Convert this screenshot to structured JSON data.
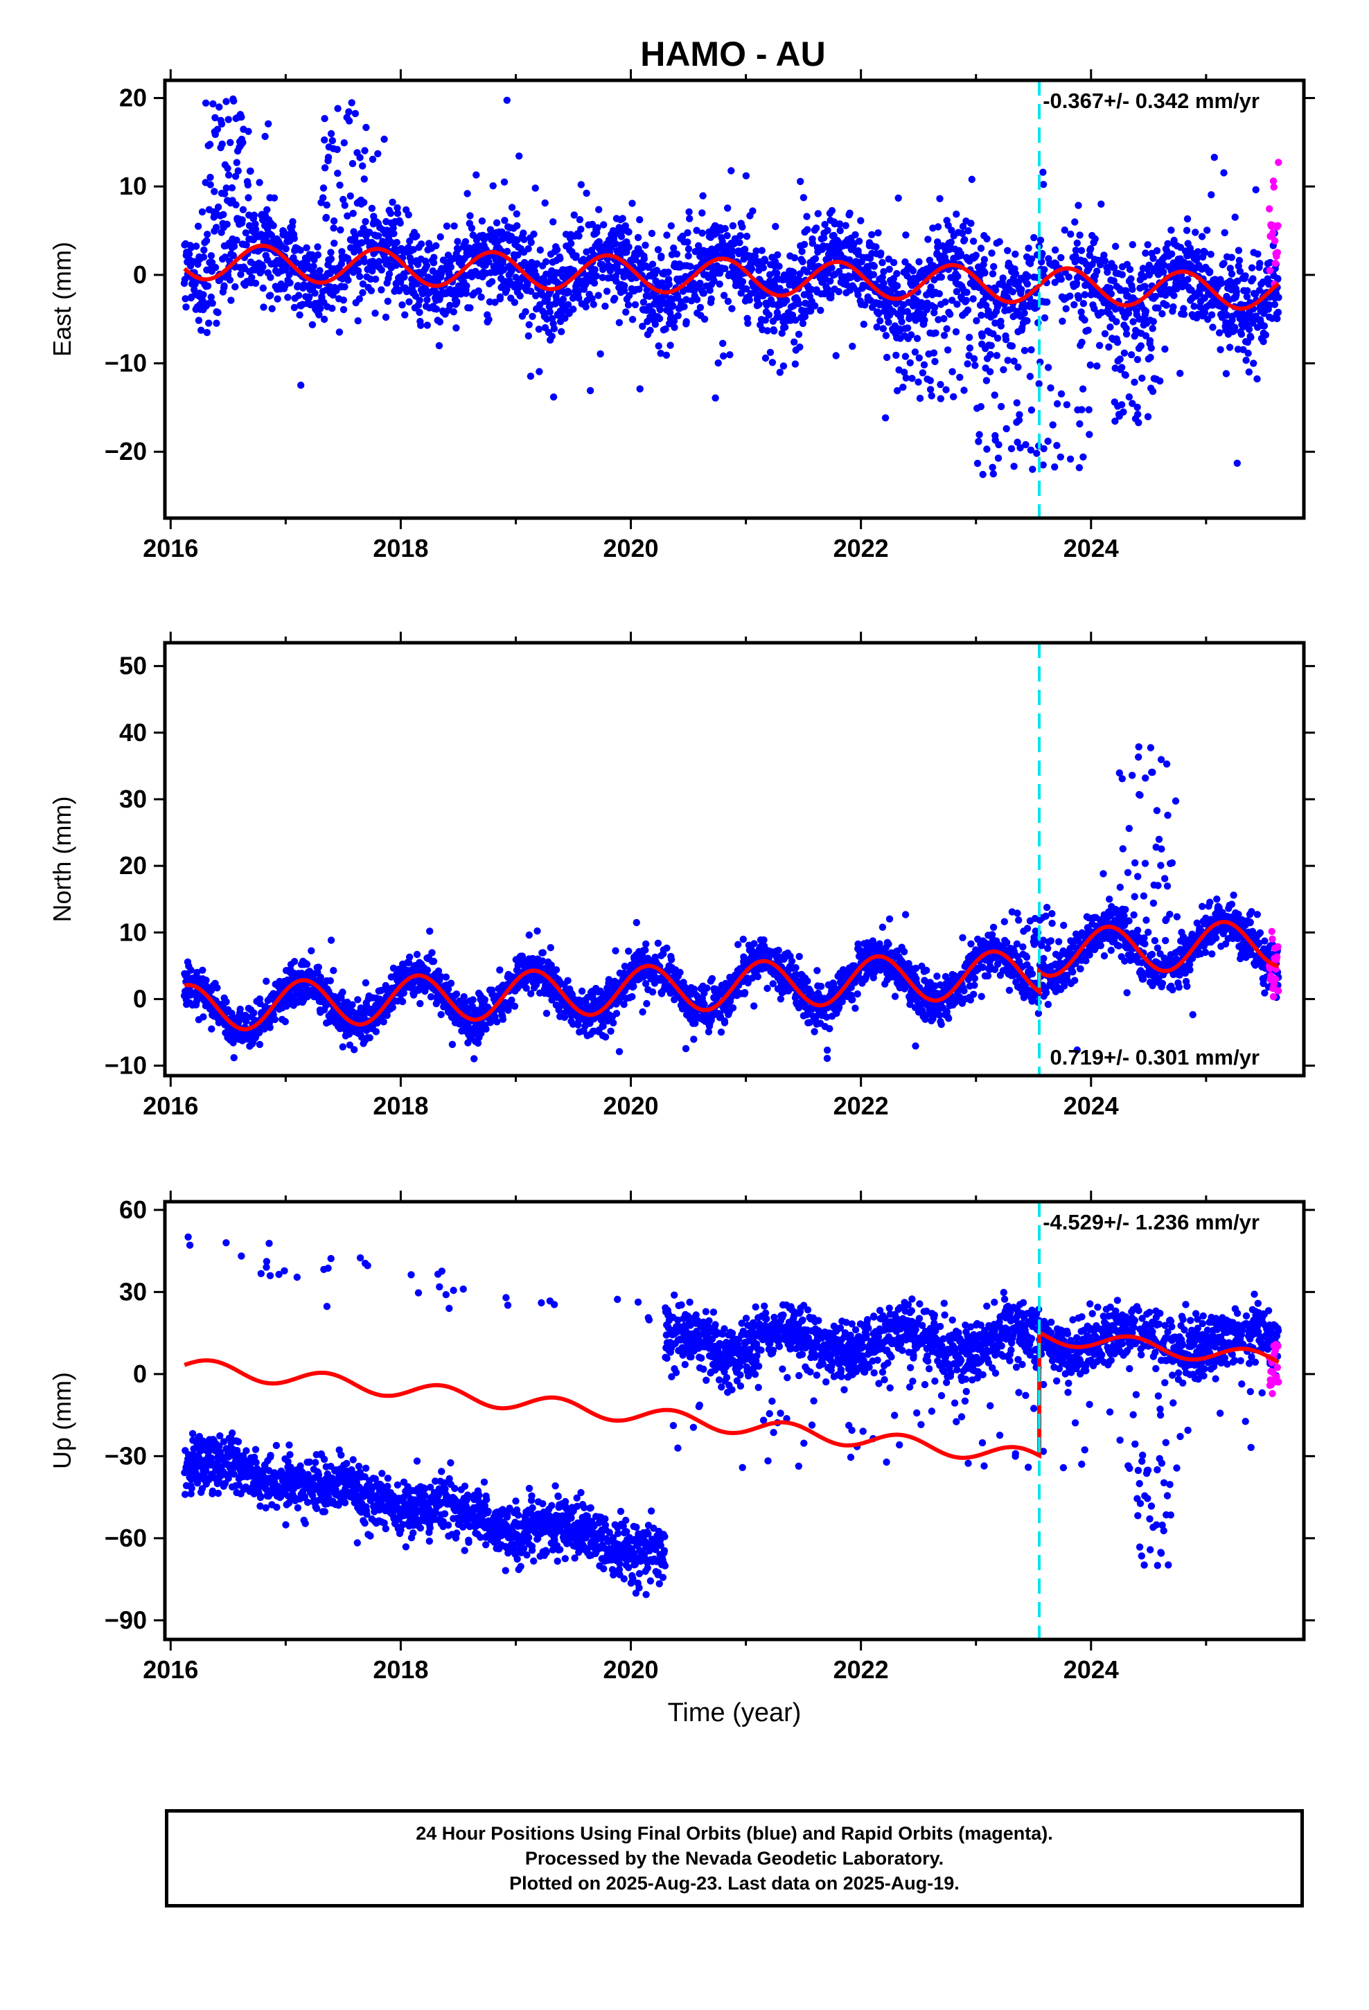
{
  "title": "HAMO - AU",
  "footer": {
    "line1": "24 Hour Positions Using Final Orbits (blue) and Rapid Orbits (magenta).",
    "line2": "Processed by the Nevada Geodetic Laboratory.",
    "line3": "Plotted on 2025-Aug-23. Last data on 2025-Aug-19."
  },
  "colors": {
    "final_orbits": "#0000ff",
    "rapid_orbits": "#ff00ff",
    "model": "#ff0000",
    "event_line": "#00e5ee"
  },
  "chart_data": [
    {
      "type": "scatter",
      "component": "east",
      "ylabel": "East (mm)",
      "xlabel": "",
      "rate_label": "-0.367+/- 0.342 mm/yr",
      "rate_position": "top-right",
      "xlim": [
        2015.95,
        2025.85
      ],
      "ylim": [
        -27.5,
        22
      ],
      "xticks": [
        2016,
        2018,
        2020,
        2022,
        2024
      ],
      "yticks": [
        20,
        10,
        0,
        -10,
        -20
      ],
      "ytick_labels": [
        "20",
        "10",
        "0",
        "−10",
        "−20"
      ],
      "event_line_x": 2023.55,
      "model": {
        "intercept": 1.6,
        "rate": -0.367,
        "annual_amp": 2.0,
        "phase": 0.55,
        "offset_at_event": 0.0,
        "x_start": 2016.12,
        "x_end": 2025.63
      },
      "data_summary": {
        "x_range": [
          2016.12,
          2025.63
        ],
        "scatter_sd": 2.5,
        "outlier_fraction": 0.08,
        "rapid_x_range": [
          2025.55,
          2025.63
        ]
      }
    },
    {
      "type": "scatter",
      "component": "north",
      "ylabel": "North (mm)",
      "xlabel": "",
      "rate_label": "0.719+/- 0.301 mm/yr",
      "rate_position": "bottom-right",
      "xlim": [
        2015.95,
        2025.85
      ],
      "ylim": [
        -11.5,
        53.5
      ],
      "xticks": [
        2016,
        2018,
        2020,
        2022,
        2024
      ],
      "yticks": [
        50,
        40,
        30,
        20,
        10,
        0,
        -10
      ],
      "ytick_labels": [
        "50",
        "40",
        "30",
        "20",
        "10",
        "0",
        "−10"
      ],
      "event_line_x": 2023.55,
      "model": {
        "intercept": -1.5,
        "rate": 0.719,
        "annual_amp": 3.5,
        "phase": 0.9,
        "offset_at_event": 3.0,
        "x_start": 2016.12,
        "x_end": 2025.63
      },
      "data_summary": {
        "x_range": [
          2016.12,
          2025.63
        ],
        "scatter_sd": 1.6,
        "outlier_fraction": 0.05,
        "rapid_x_range": [
          2025.55,
          2025.63
        ]
      }
    },
    {
      "type": "scatter",
      "component": "up",
      "ylabel": "Up (mm)",
      "xlabel": "Time (year)",
      "rate_label": "-4.529+/- 1.236 mm/yr",
      "rate_position": "top-right",
      "xlim": [
        2015.95,
        2025.85
      ],
      "ylim": [
        -97,
        63
      ],
      "xticks": [
        2016,
        2018,
        2020,
        2022,
        2024
      ],
      "yticks": [
        60,
        30,
        0,
        -30,
        -60,
        -90
      ],
      "ytick_labels": [
        "60",
        "30",
        "0",
        "−30",
        "−60",
        "−90"
      ],
      "event_line_x": 2023.55,
      "model": {
        "intercept": 3.5,
        "rate": -4.529,
        "annual_amp": 3.0,
        "phase": 0.1,
        "offset_at_event": 45.0,
        "x_start": 2016.12,
        "x_end": 2025.63
      },
      "data_summary": {
        "segment1_x_range": [
          2016.12,
          2020.3
        ],
        "segment1_trend": [
          -32,
          -65
        ],
        "segment2_x_range": [
          2020.3,
          2025.63
        ],
        "segment2_level": 12,
        "scatter_sd": 5.5,
        "rapid_x_range": [
          2025.55,
          2025.63
        ]
      }
    }
  ]
}
